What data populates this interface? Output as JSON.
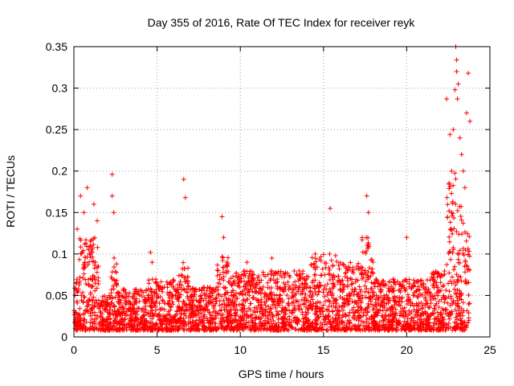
{
  "chart_data": {
    "type": "scatter",
    "title": "Day 355 of 2016, Rate Of TEC Index for receiver reyk",
    "xlabel": "GPS time / hours",
    "ylabel": "ROTI / TECUs",
    "xlim": [
      0,
      25
    ],
    "ylim": [
      0,
      0.35
    ],
    "xticks": [
      0,
      5,
      10,
      15,
      20,
      25
    ],
    "xtick_labels": [
      "0",
      "5",
      "10",
      "15",
      "20",
      "25"
    ],
    "yticks": [
      0,
      0.05,
      0.1,
      0.15,
      0.2,
      0.25,
      0.3,
      0.35
    ],
    "ytick_labels": [
      "0",
      "0.05",
      "0.1",
      "0.15",
      "0.2",
      "0.25",
      "0.3",
      "0.35"
    ],
    "grid": true,
    "legend": "none",
    "marker": "plus",
    "color": "#ff0000",
    "series": [
      {
        "x": [
          0.2,
          0.4,
          0.6,
          0.8,
          1.0,
          1.2,
          1.4,
          2.3,
          2.3,
          2.4,
          4.6,
          4.7,
          6.6,
          6.7,
          8.9,
          9.0,
          10.4,
          11.9,
          14.5,
          15.4,
          17.6,
          17.7,
          20.0,
          22.4,
          22.6,
          22.7,
          22.8,
          22.9,
          22.95,
          23.0,
          23.0,
          23.05,
          23.1,
          23.2,
          23.3,
          23.4,
          23.5,
          23.6,
          23.7,
          23.8
        ],
        "y": [
          0.13,
          0.17,
          0.15,
          0.18,
          0.11,
          0.16,
          0.14,
          0.196,
          0.17,
          0.15,
          0.102,
          0.09,
          0.19,
          0.168,
          0.145,
          0.12,
          0.09,
          0.095,
          0.1,
          0.155,
          0.17,
          0.15,
          0.12,
          0.287,
          0.244,
          0.2,
          0.25,
          0.298,
          0.35,
          0.334,
          0.32,
          0.287,
          0.305,
          0.24,
          0.22,
          0.2,
          0.18,
          0.27,
          0.318,
          0.26
        ]
      }
    ],
    "dense_bands": [
      {
        "x": [
          0.0,
          0.3
        ],
        "y": [
          0.0,
          0.07
        ]
      },
      {
        "x": [
          0.3,
          1.5
        ],
        "y": [
          0.0,
          0.12
        ]
      },
      {
        "x": [
          1.5,
          2.2
        ],
        "y": [
          0.0,
          0.05
        ]
      },
      {
        "x": [
          2.2,
          2.6
        ],
        "y": [
          0.0,
          0.1
        ]
      },
      {
        "x": [
          2.6,
          4.4
        ],
        "y": [
          0.0,
          0.06
        ]
      },
      {
        "x": [
          4.4,
          6.3
        ],
        "y": [
          0.0,
          0.07
        ]
      },
      {
        "x": [
          6.3,
          6.9
        ],
        "y": [
          0.0,
          0.09
        ]
      },
      {
        "x": [
          6.9,
          8.6
        ],
        "y": [
          0.0,
          0.06
        ]
      },
      {
        "x": [
          8.6,
          9.3
        ],
        "y": [
          0.0,
          0.1
        ]
      },
      {
        "x": [
          9.3,
          14.2
        ],
        "y": [
          0.0,
          0.08
        ]
      },
      {
        "x": [
          14.2,
          15.8
        ],
        "y": [
          0.0,
          0.1
        ]
      },
      {
        "x": [
          15.8,
          17.3
        ],
        "y": [
          0.0,
          0.09
        ]
      },
      {
        "x": [
          17.3,
          18.0
        ],
        "y": [
          0.0,
          0.12
        ]
      },
      {
        "x": [
          18.0,
          21.5
        ],
        "y": [
          0.0,
          0.07
        ]
      },
      {
        "x": [
          21.5,
          22.4
        ],
        "y": [
          0.0,
          0.08
        ]
      },
      {
        "x": [
          22.4,
          23.0
        ],
        "y": [
          0.0,
          0.2
        ]
      },
      {
        "x": [
          23.0,
          23.8
        ],
        "y": [
          0.0,
          0.16
        ]
      }
    ]
  }
}
